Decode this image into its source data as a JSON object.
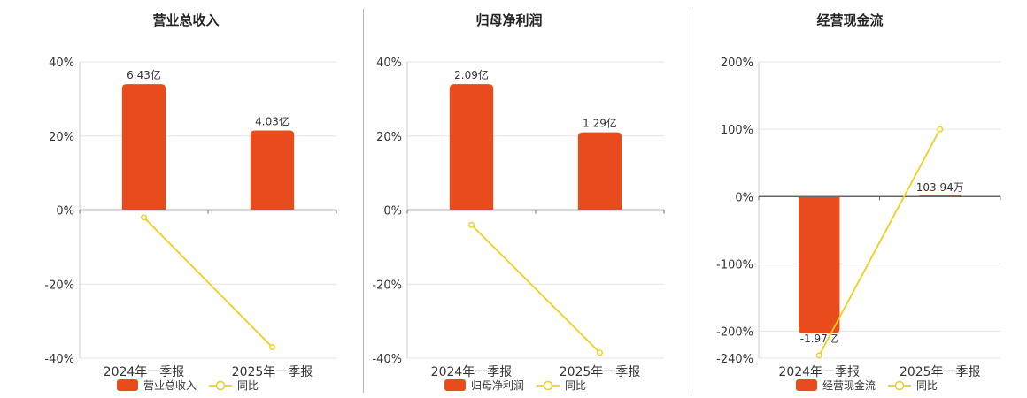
{
  "colors": {
    "bar": "#e84b1c",
    "line": "#f0cf1a",
    "grid": "#e6e6e6",
    "axis": "#666666"
  },
  "chart_data": [
    {
      "type": "bar",
      "title": "营业总收入",
      "categories": [
        "2024年一季报",
        "2025年一季报"
      ],
      "ylim": [
        -40,
        40
      ],
      "yticks": [
        40,
        20,
        0,
        -20,
        -40
      ],
      "ytick_labels": [
        "40%",
        "20%",
        "0%",
        "-20%",
        "-40%"
      ],
      "series": [
        {
          "name": "营业总收入",
          "kind": "bar",
          "values": [
            34,
            21.5
          ],
          "labels": [
            "6.43亿",
            "4.03亿"
          ]
        },
        {
          "name": "同比",
          "kind": "line",
          "values": [
            -2,
            -37
          ]
        }
      ],
      "legend": "bottom"
    },
    {
      "type": "bar",
      "title": "归母净利润",
      "categories": [
        "2024年一季报",
        "2025年一季报"
      ],
      "ylim": [
        -40,
        40
      ],
      "yticks": [
        40,
        20,
        0,
        -20,
        -40
      ],
      "ytick_labels": [
        "40%",
        "20%",
        "0%",
        "-20%",
        "-40%"
      ],
      "series": [
        {
          "name": "归母净利润",
          "kind": "bar",
          "values": [
            34,
            21
          ],
          "labels": [
            "2.09亿",
            "1.29亿"
          ]
        },
        {
          "name": "同比",
          "kind": "line",
          "values": [
            -4,
            -38.5
          ]
        }
      ],
      "legend": "bottom"
    },
    {
      "type": "bar",
      "title": "经营现金流",
      "categories": [
        "2024年一季报",
        "2025年一季报"
      ],
      "ylim": [
        -240,
        200
      ],
      "yticks": [
        200,
        100,
        0,
        -100,
        -200,
        -240
      ],
      "ytick_labels": [
        "200%",
        "100%",
        "0%",
        "-100%",
        "-200%",
        "-240%"
      ],
      "series": [
        {
          "name": "经营现金流",
          "kind": "bar",
          "values": [
            -203,
            0.6
          ],
          "labels": [
            "-1.97亿",
            "103.94万"
          ]
        },
        {
          "name": "同比",
          "kind": "line",
          "values": [
            -236,
            100
          ]
        }
      ],
      "legend": "bottom"
    }
  ]
}
